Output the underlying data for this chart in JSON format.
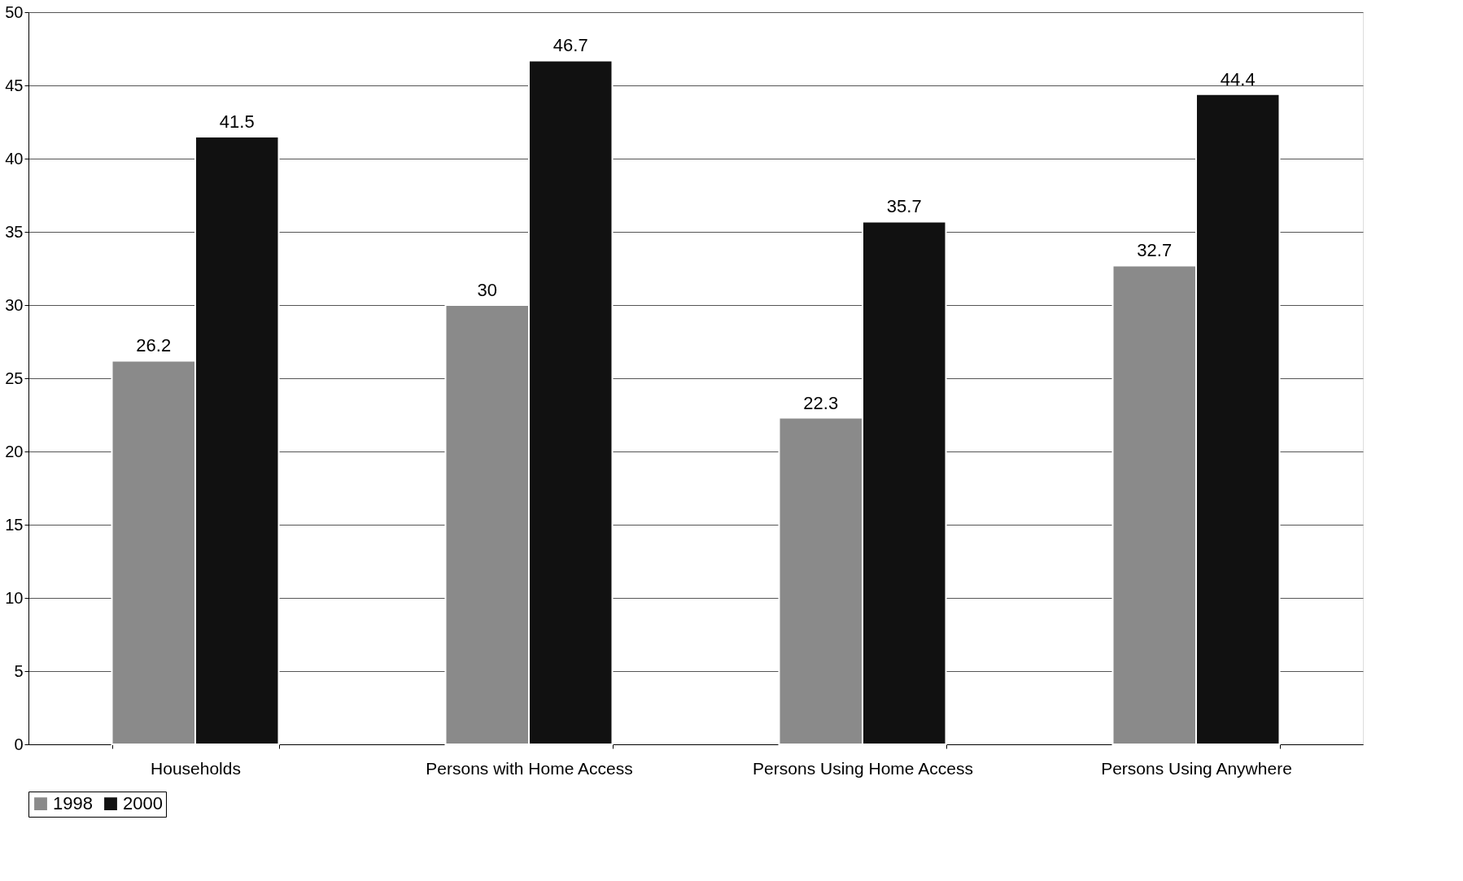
{
  "chart_data": {
    "type": "bar",
    "categories": [
      "Households",
      "Persons with Home Access",
      "Persons Using Home Access",
      "Persons Using Anywhere"
    ],
    "series": [
      {
        "name": "1998",
        "color": "#8a8a8a",
        "values": [
          26.2,
          30,
          22.3,
          32.7
        ]
      },
      {
        "name": "2000",
        "color": "#111111",
        "values": [
          41.5,
          46.7,
          35.7,
          44.4
        ]
      }
    ],
    "ylim": [
      0,
      50
    ],
    "yticks": [
      0,
      5,
      10,
      15,
      20,
      25,
      30,
      35,
      40,
      45,
      50
    ],
    "grid": "y",
    "legend": "bottom",
    "data_labels": true
  }
}
